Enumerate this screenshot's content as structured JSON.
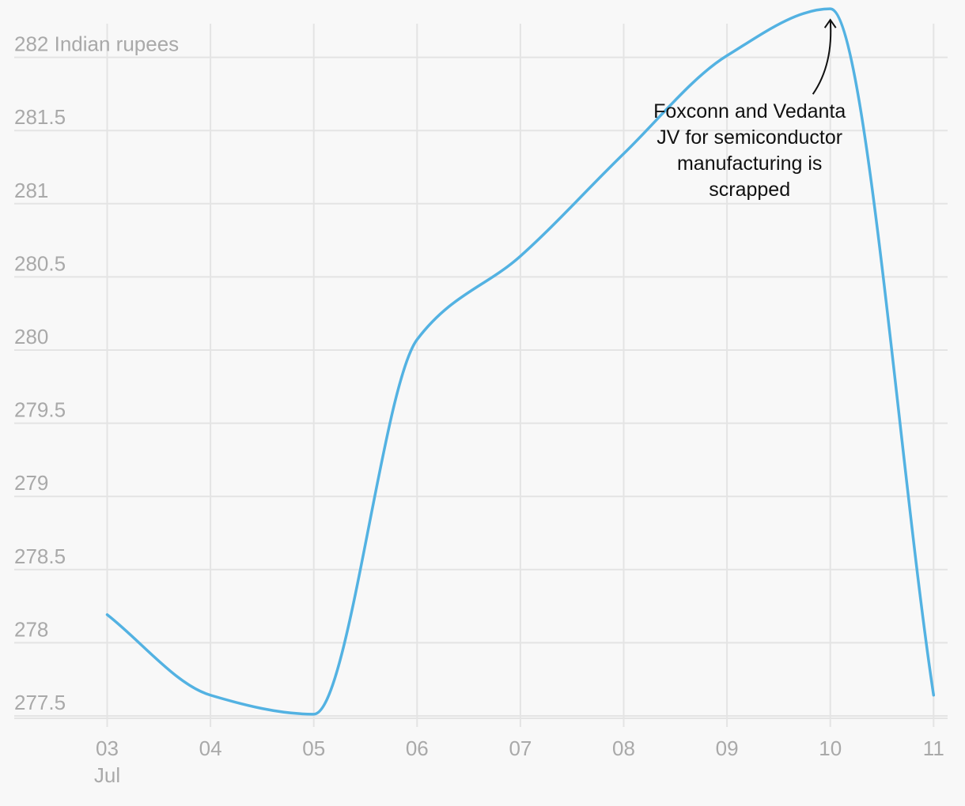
{
  "chart_data": {
    "type": "line",
    "x": [
      "03",
      "04",
      "05",
      "06",
      "07",
      "08",
      "09",
      "10",
      "11"
    ],
    "x_secondary_label": "Jul",
    "series": [
      {
        "values": [
          278.1,
          277.55,
          277.42,
          279.98,
          280.55,
          281.25,
          281.92,
          282.24,
          277.55
        ]
      }
    ],
    "ylim": [
      277.42,
      282.3
    ],
    "yticks": [
      277.5,
      278,
      278.5,
      279,
      279.5,
      280,
      280.5,
      281,
      281.5,
      282
    ],
    "ytick_labels": [
      "277.5",
      "278",
      "278.5",
      "279",
      "279.5",
      "280",
      "280.5",
      "281",
      "281.5",
      "282 Indian rupees"
    ],
    "grid": true,
    "line_color": "#53b2e2",
    "annotation": {
      "x": "10",
      "lines": [
        "Foxconn and Vedanta",
        "JV for semiconductor",
        "manufacturing is",
        "scrapped"
      ]
    }
  }
}
